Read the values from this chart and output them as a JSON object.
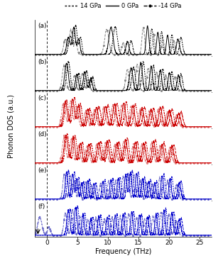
{
  "xlabel": "Frequency (THz)",
  "ylabel": "Phonon DOS (a.u.)",
  "xlim": [
    -2,
    27
  ],
  "panels": [
    "(a)",
    "(b)",
    "(c)",
    "(d)",
    "(e)",
    "(f)"
  ],
  "colors": {
    "ab_14": "#000000",
    "ab_0": "#000000",
    "ab_m14": "#888888",
    "cd_14": "#cc0000",
    "cd_0": "#cc0000",
    "cd_m14": "#e08080",
    "ef_14": "#0000cc",
    "ef_0": "#0000cc",
    "ef_m14": "#7070cc"
  },
  "lw": 0.7,
  "dpi": 100,
  "figsize": [
    3.07,
    3.71
  ],
  "legend_dotted": "14 GPa",
  "legend_solid": "0 GPa",
  "legend_dashdot": "-14 GPa"
}
